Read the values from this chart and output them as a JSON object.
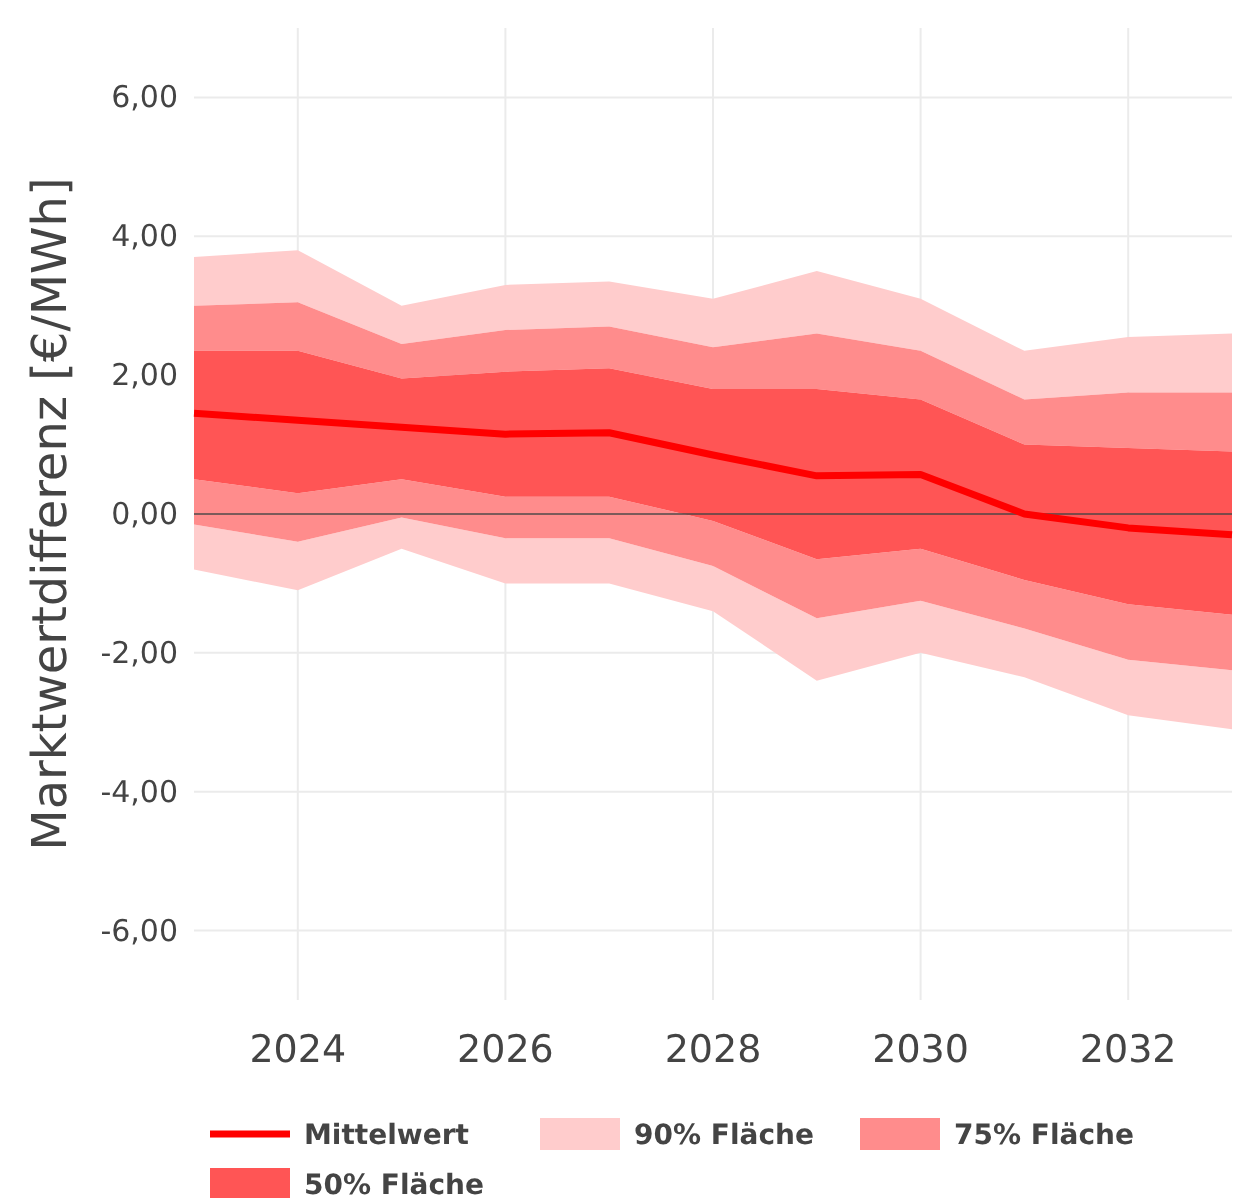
{
  "chart_data": {
    "type": "area",
    "ylabel": "Marktwertdifferenz [€/MWh]",
    "x": [
      2023,
      2024,
      2025,
      2026,
      2027,
      2028,
      2029,
      2030,
      2031,
      2032,
      2033
    ],
    "xlim": [
      2023,
      2033
    ],
    "xticks": [
      2024,
      2026,
      2028,
      2030,
      2032
    ],
    "ylim": [
      -7,
      7
    ],
    "yticks": [
      {
        "value": -6,
        "label": "-6,00"
      },
      {
        "value": -4,
        "label": "-4,00"
      },
      {
        "value": -2,
        "label": "-2,00"
      },
      {
        "value": 0,
        "label": "0,00"
      },
      {
        "value": 2,
        "label": "2,00"
      },
      {
        "value": 4,
        "label": "4,00"
      },
      {
        "value": 6,
        "label": "6,00"
      }
    ],
    "grid": true,
    "legend": "bottom",
    "ref_lines": [
      {
        "axis": "y",
        "value": 0,
        "color": "#444444"
      }
    ],
    "series": [
      {
        "name": "Mittelwert",
        "type": "line",
        "color": "#ff0000",
        "values": [
          1.45,
          1.35,
          1.25,
          1.15,
          1.17,
          0.85,
          0.55,
          0.57,
          0.0,
          -0.2,
          -0.3
        ]
      },
      {
        "name": "90% Fläche",
        "color": "#ffcccc",
        "values": [
          null,
          null,
          null,
          null,
          null,
          null,
          null,
          null,
          null,
          null,
          null
        ],
        "upper": [
          3.7,
          3.8,
          3.0,
          3.3,
          3.35,
          3.1,
          3.5,
          3.1,
          2.35,
          2.55,
          2.6
        ],
        "lower": [
          -0.8,
          -1.1,
          -0.5,
          -1.0,
          -1.0,
          -1.4,
          -2.4,
          -2.0,
          -2.35,
          -2.9,
          -3.1
        ]
      },
      {
        "name": "75% Fläche",
        "color": "#ff8c8c",
        "values": [
          null,
          null,
          null,
          null,
          null,
          null,
          null,
          null,
          null,
          null,
          null
        ],
        "upper": [
          3.0,
          3.05,
          2.45,
          2.65,
          2.7,
          2.4,
          2.6,
          2.35,
          1.65,
          1.75,
          1.75
        ],
        "lower": [
          -0.15,
          -0.4,
          -0.05,
          -0.35,
          -0.35,
          -0.75,
          -1.5,
          -1.25,
          -1.65,
          -2.1,
          -2.25
        ]
      },
      {
        "name": "50% Fläche",
        "color": "#ff5555",
        "values": [
          null,
          null,
          null,
          null,
          null,
          null,
          null,
          null,
          null,
          null,
          null
        ],
        "upper": [
          2.35,
          2.35,
          1.95,
          2.05,
          2.1,
          1.8,
          1.8,
          1.65,
          1.0,
          0.95,
          0.9
        ],
        "lower": [
          0.5,
          0.3,
          0.5,
          0.25,
          0.25,
          -0.1,
          -0.65,
          -0.5,
          -0.95,
          -1.3,
          -1.45
        ]
      }
    ]
  }
}
